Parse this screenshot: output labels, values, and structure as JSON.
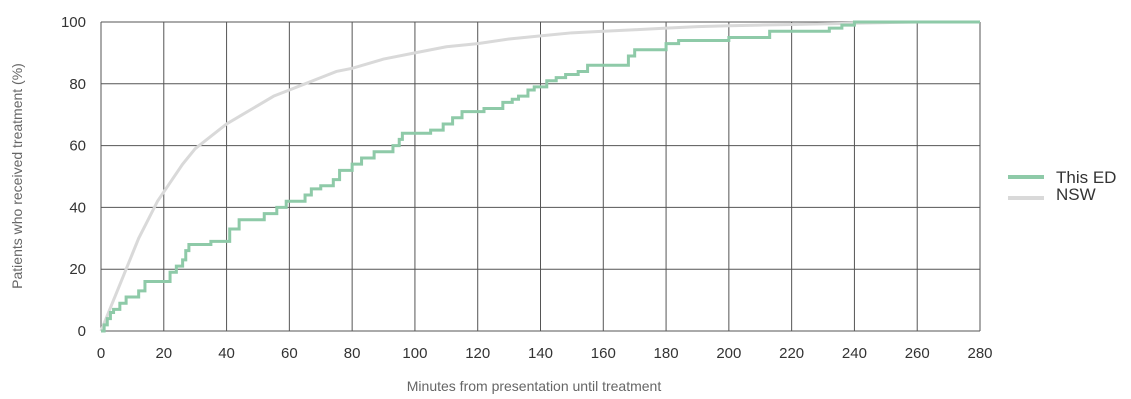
{
  "chart_data": {
    "type": "line",
    "title": "",
    "xlabel": "Minutes from presentation until treatment",
    "ylabel": "Patients who received treatment (%)",
    "xlim": [
      0,
      280
    ],
    "ylim": [
      0,
      100
    ],
    "xticks": [
      0,
      20,
      40,
      60,
      80,
      100,
      120,
      140,
      160,
      180,
      200,
      220,
      240,
      260,
      280
    ],
    "yticks": [
      0,
      20,
      40,
      60,
      80,
      100
    ],
    "grid": true,
    "legend_position": "right",
    "series": [
      {
        "name": "This ED",
        "color": "#8ecaa8",
        "step": true,
        "x": [
          0,
          1,
          2,
          3,
          4,
          6,
          8,
          12,
          14,
          22,
          24,
          26,
          27,
          28,
          29,
          35,
          41,
          43,
          44,
          46,
          52,
          56,
          59,
          65,
          67,
          70,
          74,
          76,
          80,
          83,
          87,
          93,
          95,
          96,
          105,
          109,
          112,
          115,
          117,
          122,
          128,
          131,
          133,
          136,
          138,
          142,
          145,
          148,
          152,
          155,
          159,
          168,
          170,
          180,
          184,
          200,
          213,
          232,
          236,
          240,
          280
        ],
        "y": [
          0,
          2,
          4,
          6,
          7,
          9,
          11,
          13,
          16,
          19,
          21,
          23,
          26,
          28,
          28,
          29,
          33,
          33,
          36,
          36,
          38,
          40,
          42,
          44,
          46,
          47,
          49,
          52,
          54,
          56,
          58,
          60,
          62,
          64,
          65,
          67,
          69,
          71,
          71,
          72,
          74,
          75,
          76,
          78,
          79,
          81,
          82,
          83,
          84,
          86,
          86,
          89,
          91,
          93,
          94,
          95,
          97,
          98,
          99,
          100,
          100
        ]
      },
      {
        "name": "NSW",
        "color": "#d9d9d9",
        "step": false,
        "x": [
          0,
          2,
          4,
          6,
          8,
          10,
          12,
          15,
          18,
          22,
          26,
          30,
          35,
          40,
          45,
          50,
          55,
          60,
          65,
          70,
          75,
          80,
          90,
          100,
          110,
          120,
          130,
          140,
          150,
          160,
          170,
          180,
          190,
          200,
          210,
          220,
          230,
          240,
          250,
          260,
          280
        ],
        "y": [
          0,
          5,
          10,
          15,
          20,
          25,
          30,
          36,
          42,
          48,
          54,
          59,
          63,
          67,
          70,
          73,
          76,
          78,
          80,
          82,
          84,
          85,
          88,
          90,
          92,
          93,
          94.5,
          95.5,
          96.5,
          97,
          97.5,
          98,
          98.5,
          98.8,
          99,
          99.2,
          99.4,
          99.6,
          99.8,
          100,
          100
        ]
      }
    ]
  }
}
